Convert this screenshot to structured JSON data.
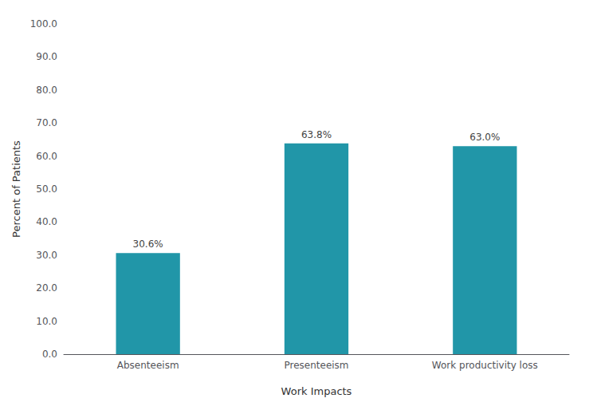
{
  "chart_data": {
    "type": "bar",
    "categories": [
      "Absenteeism",
      "Presenteeism",
      "Work productivity loss"
    ],
    "values": [
      30.6,
      63.8,
      63.0
    ],
    "value_labels": [
      "30.6%",
      "63.8%",
      "63.0%"
    ],
    "data_labels": true,
    "color": "#2196A8",
    "xlabel": "Work Impacts",
    "ylabel": "Percent of Patients",
    "ylim": [
      0,
      100
    ],
    "yticks": [
      {
        "value": 0,
        "label": "0.0"
      },
      {
        "value": 10,
        "label": "10.0"
      },
      {
        "value": 20,
        "label": "20.0"
      },
      {
        "value": 30,
        "label": "30.0"
      },
      {
        "value": 40,
        "label": "40.0"
      },
      {
        "value": 50,
        "label": "50.0"
      },
      {
        "value": 60,
        "label": "60.0"
      },
      {
        "value": 70,
        "label": "70.0"
      },
      {
        "value": 80,
        "label": "80.0"
      },
      {
        "value": 90,
        "label": "90.0"
      },
      {
        "value": 100,
        "label": "100.0"
      }
    ],
    "grid": false
  }
}
